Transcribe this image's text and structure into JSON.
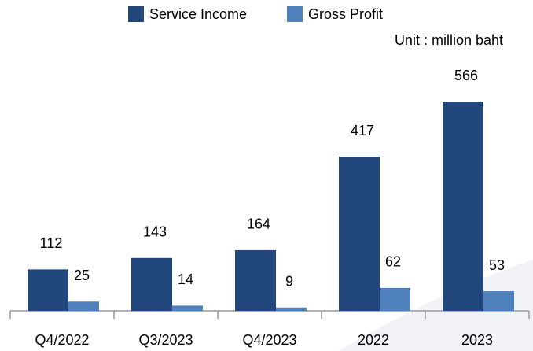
{
  "chart_data": {
    "type": "bar",
    "annotation": "Unit : million baht",
    "categories": [
      "Q4/2022",
      "Q3/2023",
      "Q4/2023",
      "2022",
      "2023"
    ],
    "series": [
      {
        "name": "Service Income",
        "color": "#22477c",
        "values": [
          112,
          143,
          164,
          417,
          566
        ]
      },
      {
        "name": "Gross Profit",
        "color": "#4f81bd",
        "values": [
          25,
          14,
          9,
          62,
          53
        ]
      }
    ]
  }
}
